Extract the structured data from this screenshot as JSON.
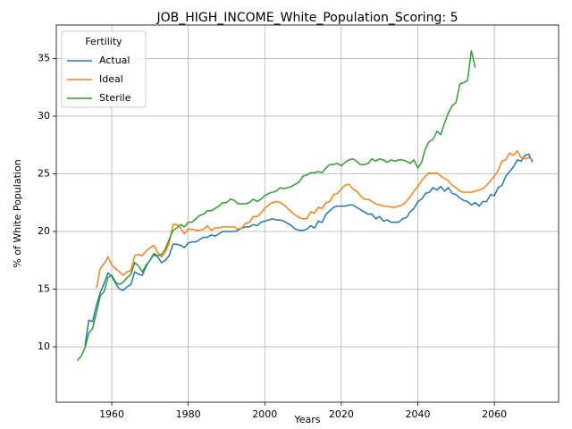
{
  "chart_data": {
    "type": "line",
    "title": "JOB_HIGH_INCOME_White_Population_Scoring: 5",
    "x_label": "Years",
    "y_label": "% of White Population",
    "legend_title": "Fertility",
    "legend_loc": "upper left",
    "grid": true,
    "xlim": [
      1945.5,
      2076.8
    ],
    "ylim": [
      5.2,
      37.9
    ],
    "xticks": [
      1960,
      1980,
      2000,
      2020,
      2040,
      2060
    ],
    "yticks": [
      10,
      15,
      20,
      25,
      30,
      35
    ],
    "x": [
      1951,
      1952,
      1953,
      1954,
      1955,
      1956,
      1957,
      1958,
      1959,
      1960,
      1961,
      1962,
      1963,
      1964,
      1965,
      1966,
      1967,
      1968,
      1969,
      1970,
      1971,
      1972,
      1973,
      1974,
      1975,
      1976,
      1977,
      1978,
      1979,
      1980,
      1981,
      1982,
      1983,
      1984,
      1985,
      1986,
      1987,
      1988,
      1989,
      1990,
      1991,
      1992,
      1993,
      1994,
      1995,
      1996,
      1997,
      1998,
      1999,
      2000,
      2001,
      2002,
      2003,
      2004,
      2005,
      2006,
      2007,
      2008,
      2009,
      2010,
      2011,
      2012,
      2013,
      2014,
      2015,
      2016,
      2017,
      2018,
      2019,
      2020,
      2021,
      2022,
      2023,
      2024,
      2025,
      2026,
      2027,
      2028,
      2029,
      2030,
      2031,
      2032,
      2033,
      2034,
      2035,
      2036,
      2037,
      2038,
      2039,
      2040,
      2041,
      2042,
      2043,
      2044,
      2045,
      2046,
      2047,
      2048,
      2049,
      2050,
      2051,
      2052,
      2053,
      2054,
      2055,
      2056,
      2057,
      2058,
      2059,
      2060,
      2061,
      2062,
      2063,
      2064,
      2065,
      2066,
      2067,
      2068,
      2069,
      2070
    ],
    "series": [
      {
        "name": "Actual",
        "color": "#1f77b4",
        "values": [
          null,
          null,
          10.1,
          12.3,
          12.2,
          13.6,
          14.7,
          15.5,
          16.4,
          16.1,
          15.5,
          15.0,
          14.9,
          15.2,
          15.4,
          16.5,
          16.3,
          16.2,
          17.0,
          17.5,
          18.0,
          17.8,
          17.3,
          17.5,
          17.9,
          18.9,
          18.9,
          18.8,
          18.6,
          19.0,
          19.1,
          19.1,
          19.3,
          19.5,
          19.5,
          19.7,
          19.6,
          19.8,
          20.0,
          20.0,
          20.0,
          20.0,
          20.1,
          20.3,
          20.4,
          20.4,
          20.6,
          20.5,
          20.8,
          20.9,
          21.0,
          21.1,
          21.0,
          21.0,
          20.9,
          20.7,
          20.5,
          20.2,
          20.1,
          20.1,
          20.2,
          20.5,
          20.3,
          20.9,
          20.8,
          21.5,
          21.8,
          22.1,
          22.2,
          22.2,
          22.2,
          22.3,
          22.3,
          22.1,
          21.9,
          21.7,
          21.5,
          21.5,
          21.1,
          21.3,
          20.9,
          21.0,
          20.8,
          20.8,
          20.8,
          21.1,
          21.2,
          21.7,
          22.0,
          22.6,
          22.8,
          23.3,
          23.4,
          23.8,
          23.6,
          23.9,
          23.5,
          23.8,
          23.3,
          23.2,
          22.9,
          22.7,
          22.6,
          22.3,
          22.5,
          22.2,
          22.6,
          22.6,
          23.2,
          23.1,
          23.8,
          24.0,
          24.8,
          25.2,
          25.6,
          26.2,
          26.1,
          26.6,
          26.7,
          26.0
        ]
      },
      {
        "name": "Ideal",
        "color": "#ff7f0e",
        "values": [
          null,
          null,
          null,
          null,
          null,
          15.1,
          16.8,
          17.2,
          17.8,
          17.1,
          16.8,
          16.5,
          16.2,
          16.5,
          16.6,
          17.9,
          18.0,
          17.9,
          18.3,
          18.6,
          18.8,
          18.2,
          17.8,
          18.2,
          19.0,
          20.6,
          20.6,
          20.3,
          19.8,
          20.2,
          20.2,
          20.1,
          20.1,
          20.2,
          20.5,
          20.1,
          20.3,
          20.3,
          20.4,
          20.4,
          20.4,
          20.4,
          20.2,
          20.3,
          20.7,
          20.8,
          21.3,
          21.3,
          21.6,
          22.0,
          22.3,
          22.5,
          22.6,
          22.5,
          22.3,
          22.0,
          21.7,
          21.4,
          21.2,
          21.1,
          21.1,
          21.7,
          21.6,
          22.1,
          22.0,
          22.5,
          22.6,
          23.2,
          23.3,
          23.7,
          24.0,
          24.1,
          23.7,
          23.5,
          23.1,
          22.8,
          22.8,
          22.6,
          22.4,
          22.3,
          22.2,
          22.2,
          22.1,
          22.1,
          22.2,
          22.3,
          22.6,
          23.0,
          23.5,
          23.9,
          24.4,
          24.8,
          25.1,
          25.0,
          25.1,
          24.8,
          24.6,
          24.4,
          24.0,
          23.8,
          23.5,
          23.4,
          23.4,
          23.4,
          23.5,
          23.6,
          23.7,
          24.0,
          24.4,
          24.8,
          25.3,
          26.1,
          26.2,
          26.8,
          26.6,
          27.0,
          26.4,
          26.3,
          26.4,
          26.2
        ]
      },
      {
        "name": "Sterile",
        "color": "#2ca02c",
        "values": [
          8.8,
          9.2,
          9.9,
          11.2,
          11.6,
          13.0,
          14.4,
          14.8,
          16.0,
          16.2,
          15.6,
          15.4,
          15.6,
          16.0,
          16.3,
          17.3,
          17.0,
          16.5,
          17.1,
          17.5,
          18.1,
          17.9,
          18.0,
          18.5,
          19.3,
          20.1,
          20.3,
          20.6,
          20.4,
          20.8,
          20.8,
          21.1,
          21.4,
          21.5,
          21.8,
          21.8,
          22.0,
          22.2,
          22.5,
          22.5,
          22.8,
          22.7,
          22.4,
          22.4,
          22.4,
          22.5,
          22.8,
          22.6,
          22.8,
          23.1,
          23.3,
          23.4,
          23.5,
          23.8,
          23.7,
          23.8,
          23.9,
          24.1,
          24.3,
          24.8,
          24.9,
          25.1,
          25.1,
          25.2,
          25.1,
          25.5,
          25.8,
          25.8,
          25.9,
          25.7,
          26.0,
          26.2,
          26.3,
          26.1,
          25.8,
          25.8,
          25.9,
          26.3,
          26.1,
          26.3,
          26.2,
          26.0,
          26.2,
          26.1,
          26.2,
          26.2,
          26.1,
          25.9,
          26.2,
          25.5,
          26.0,
          27.2,
          27.8,
          28.0,
          28.7,
          28.4,
          29.4,
          30.3,
          30.9,
          31.2,
          32.8,
          32.9,
          33.1,
          35.7,
          34.2,
          null,
          null,
          null,
          null,
          null,
          null,
          null,
          null,
          null,
          null,
          null,
          null,
          null,
          null,
          null
        ]
      }
    ]
  }
}
